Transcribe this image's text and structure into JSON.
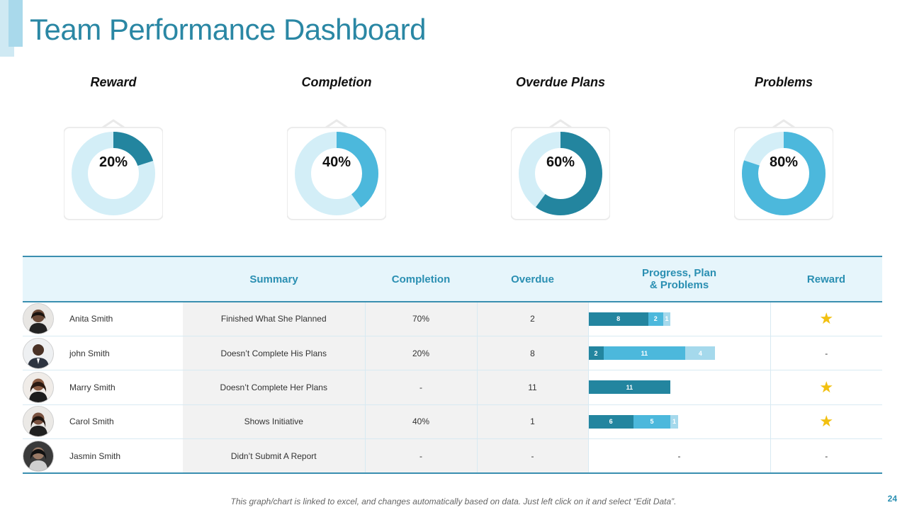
{
  "title": "Team Performance Dashboard",
  "colors": {
    "title": "#2a87a4",
    "ring_track": "#d3eef7",
    "ring_dark": "#23859f",
    "ring_light": "#4cb8dc",
    "bar_dark": "#23859f",
    "bar_mid": "#4cb8dc",
    "bar_light": "#a5d9ec",
    "star": "#f2c010"
  },
  "chart_data": [
    {
      "type": "pie",
      "title": "Reward",
      "labels": [
        "Reward",
        "Remaining"
      ],
      "values": [
        20,
        80
      ],
      "center_label": "20%",
      "highlight": "dark"
    },
    {
      "type": "pie",
      "title": "Completion",
      "labels": [
        "Completion",
        "Remaining"
      ],
      "values": [
        40,
        60
      ],
      "center_label": "40%",
      "highlight": "light"
    },
    {
      "type": "pie",
      "title": "Overdue Plans",
      "labels": [
        "Overdue Plans",
        "Remaining"
      ],
      "values": [
        60,
        40
      ],
      "center_label": "60%",
      "highlight": "dark"
    },
    {
      "type": "pie",
      "title": "Problems",
      "labels": [
        "Problems",
        "Remaining"
      ],
      "values": [
        80,
        20
      ],
      "center_label": "80%",
      "highlight": "light"
    }
  ],
  "table": {
    "headers": {
      "summary": "Summary",
      "completion": "Completion",
      "overdue": "Overdue",
      "progress_line1": "Progress, Plan",
      "progress_line2": "& Problems",
      "reward": "Reward"
    },
    "bar_max": 19,
    "rows": [
      {
        "name": "Anita Smith",
        "summary": "Finished What She Planned",
        "completion": "70%",
        "overdue": "2",
        "bars": [
          8,
          2,
          1
        ],
        "bars_empty": "",
        "reward": "★"
      },
      {
        "name": "john Smith",
        "summary": "Doesn’t Complete His Plans",
        "completion": "20%",
        "overdue": "8",
        "bars": [
          2,
          11,
          4
        ],
        "bars_empty": "",
        "reward": "-"
      },
      {
        "name": "Marry  Smith",
        "summary": "Doesn’t Complete Her Plans",
        "completion": "-",
        "overdue": "11",
        "bars": [
          11
        ],
        "bars_empty": "",
        "reward": "★"
      },
      {
        "name": "Carol Smith",
        "summary": "Shows Initiative",
        "completion": "40%",
        "overdue": "1",
        "bars": [
          6,
          5,
          1
        ],
        "bars_empty": "",
        "reward": "★"
      },
      {
        "name": "Jasmin Smith",
        "summary": "Didn’t Submit A Report",
        "completion": "-",
        "overdue": "-",
        "bars": [],
        "bars_empty": "-",
        "reward": "-"
      }
    ]
  },
  "footer": "This graph/chart is linked to excel, and changes automatically  based on data.  Just left click on it and select “Edit Data”.",
  "page_number": "24"
}
